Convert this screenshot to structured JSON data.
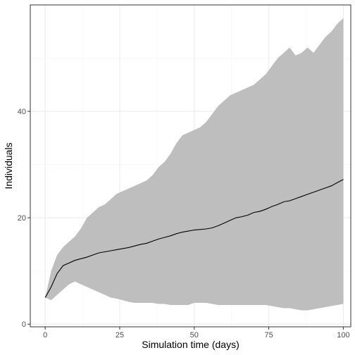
{
  "chart_data": {
    "type": "area",
    "xlabel": "Simulation time (days)",
    "ylabel": "Individuals",
    "xlim": [
      -5,
      102.5
    ],
    "ylim": [
      -0.5,
      60
    ],
    "x_ticks": [
      0,
      25,
      50,
      75,
      100
    ],
    "y_ticks": [
      0,
      20,
      40
    ],
    "grid": true,
    "colors": {
      "band": "#bebebe",
      "line": "#000000",
      "grid_major": "#ebebeb",
      "grid_minor": "#f5f5f5",
      "border": "#333333"
    },
    "series": [
      {
        "x": [
          0,
          2,
          4,
          6,
          8,
          10,
          12,
          14,
          16,
          18,
          20,
          22,
          24,
          26,
          28,
          30,
          32,
          34,
          36,
          38,
          40,
          42,
          44,
          46,
          48,
          50,
          52,
          54,
          56,
          58,
          60,
          62,
          64,
          66,
          68,
          70,
          72,
          74,
          76,
          78,
          80,
          82,
          84,
          86,
          88,
          90,
          92,
          94,
          96,
          98,
          100
        ],
        "median": [
          5,
          7,
          9.5,
          11,
          11.5,
          12,
          12.3,
          12.6,
          13,
          13.4,
          13.6,
          13.8,
          14,
          14.2,
          14.4,
          14.7,
          15,
          15.2,
          15.6,
          16,
          16.3,
          16.6,
          17,
          17.3,
          17.5,
          17.7,
          17.8,
          17.9,
          18.1,
          18.5,
          19,
          19.5,
          20,
          20.2,
          20.5,
          21,
          21.2,
          21.6,
          22.1,
          22.5,
          23,
          23.2,
          23.6,
          24,
          24.4,
          24.8,
          25.2,
          25.6,
          26,
          26.6,
          27.2
        ],
        "upper": [
          5,
          10,
          13,
          14.5,
          15.5,
          16.5,
          18,
          20,
          21,
          22,
          22.5,
          23.5,
          24.5,
          25,
          25.5,
          26,
          26.5,
          27,
          28,
          29.5,
          30.5,
          32,
          34,
          35.5,
          36,
          36.5,
          37,
          38,
          39.5,
          41,
          42,
          43,
          43.5,
          44,
          44.5,
          45,
          46,
          47,
          48.5,
          50,
          51,
          52,
          50.5,
          51,
          52,
          51,
          52.5,
          54,
          55,
          56.5,
          57.5
        ],
        "lower": [
          5,
          4.5,
          5.5,
          6.5,
          7.5,
          8,
          7.5,
          7,
          6.5,
          6,
          5.5,
          5,
          4.8,
          4.5,
          4.2,
          4,
          4,
          4,
          4,
          3.8,
          3.8,
          3.6,
          3.6,
          3.6,
          3.6,
          4,
          4,
          4,
          3.8,
          3.6,
          3.6,
          3.6,
          3.6,
          3.6,
          3.6,
          3.6,
          3.6,
          3.6,
          3.4,
          3.2,
          3,
          3,
          2.8,
          2.6,
          2.6,
          2.8,
          3,
          3.2,
          3.4,
          3.6,
          3.8
        ]
      }
    ]
  }
}
